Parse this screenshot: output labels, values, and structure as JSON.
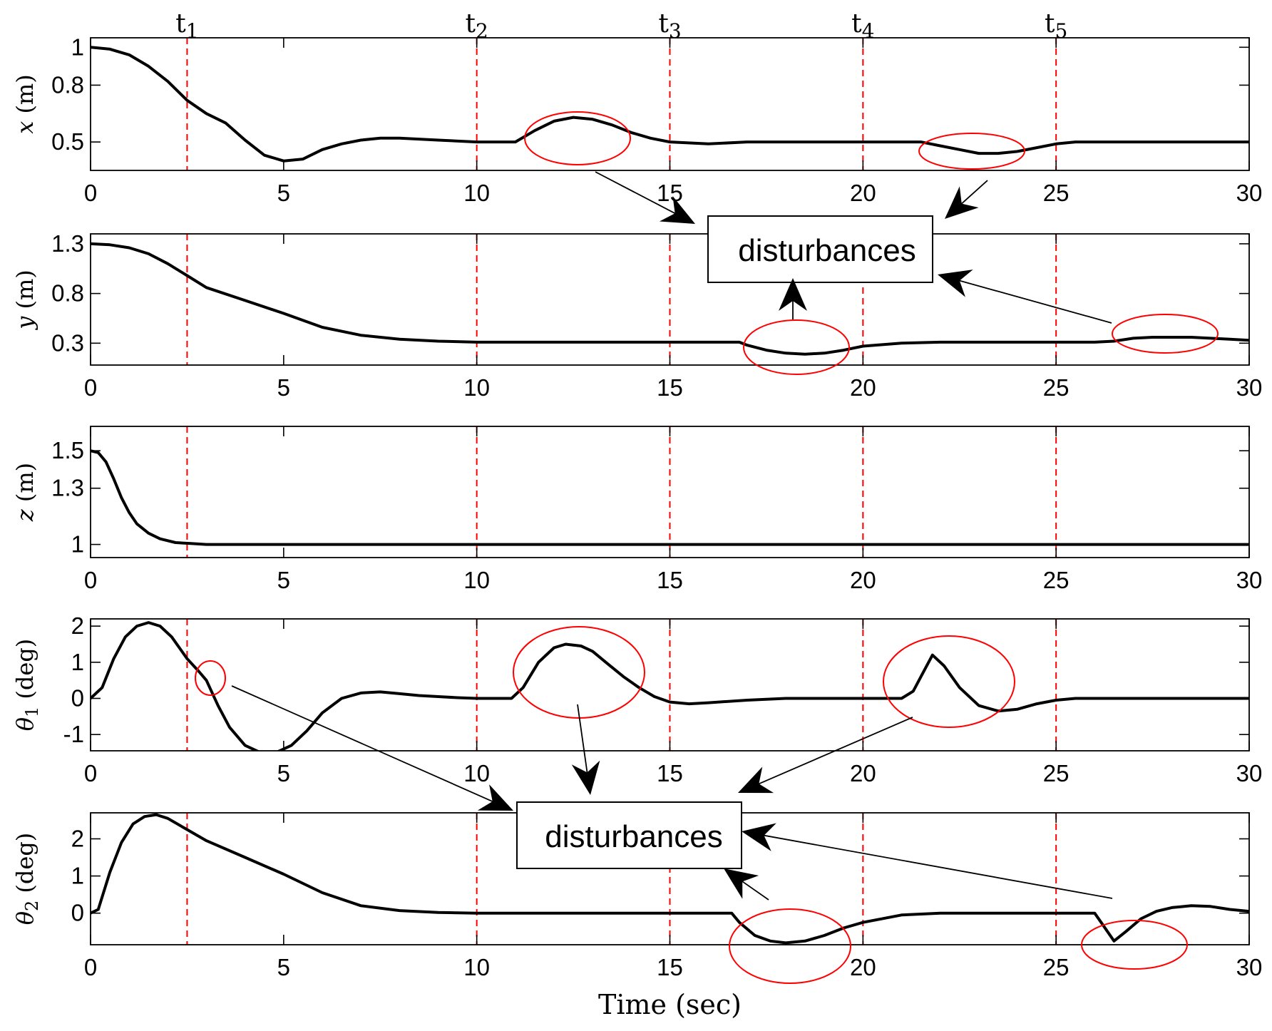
{
  "chart_data": {
    "type": "line",
    "xlabel": "Time (sec)",
    "xlim": [
      0,
      30
    ],
    "xticks": [
      0,
      5,
      10,
      15,
      20,
      25,
      30
    ],
    "vlines": [
      {
        "label_base": "t",
        "label_sub": "1",
        "x": 2.5
      },
      {
        "label_base": "t",
        "label_sub": "2",
        "x": 10
      },
      {
        "label_base": "t",
        "label_sub": "3",
        "x": 15
      },
      {
        "label_base": "t",
        "label_sub": "4",
        "x": 20
      },
      {
        "label_base": "t",
        "label_sub": "5",
        "x": 25
      }
    ],
    "vline_color": "#ff0000",
    "line_color": "#000000",
    "annotation_color": "#ff0000",
    "annotation_text": "disturbances",
    "panels": [
      {
        "ylabel_var": "x",
        "ylabel_sub": "",
        "ylabel_unit": "(m)",
        "ylim": [
          0.35,
          1.05
        ],
        "yticks": [
          {
            "v": 1,
            "t": "1"
          },
          {
            "v": 0.8,
            "t": "0.8"
          },
          {
            "v": 0.5,
            "t": "0.5"
          }
        ],
        "x": [
          0,
          0.5,
          1,
          1.5,
          2,
          2.5,
          3,
          3.5,
          4,
          4.5,
          5,
          5.5,
          6,
          6.5,
          7,
          7.5,
          8,
          9,
          10,
          10.5,
          11,
          11.5,
          12,
          12.5,
          13,
          13.5,
          14,
          14.5,
          15,
          16,
          17,
          18,
          19,
          20,
          21,
          21.5,
          22,
          22.5,
          23,
          23.5,
          24,
          24.5,
          25,
          25.5,
          26,
          27,
          28,
          29,
          30
        ],
        "y": [
          1.0,
          0.99,
          0.96,
          0.9,
          0.82,
          0.72,
          0.65,
          0.6,
          0.51,
          0.43,
          0.4,
          0.41,
          0.46,
          0.49,
          0.51,
          0.52,
          0.52,
          0.51,
          0.5,
          0.5,
          0.5,
          0.56,
          0.61,
          0.63,
          0.62,
          0.59,
          0.55,
          0.52,
          0.5,
          0.49,
          0.5,
          0.5,
          0.5,
          0.5,
          0.5,
          0.5,
          0.48,
          0.46,
          0.44,
          0.44,
          0.45,
          0.47,
          0.49,
          0.5,
          0.5,
          0.5,
          0.5,
          0.5,
          0.5
        ]
      },
      {
        "ylabel_var": "y",
        "ylabel_sub": "",
        "ylabel_unit": "(m)",
        "ylim": [
          0.08,
          1.4
        ],
        "yticks": [
          {
            "v": 1.3,
            "t": "1.3"
          },
          {
            "v": 0.8,
            "t": "0.8"
          },
          {
            "v": 0.3,
            "t": "0.3"
          }
        ],
        "x": [
          0,
          0.5,
          1,
          1.5,
          2,
          2.5,
          3,
          4,
          5,
          6,
          7,
          8,
          9,
          10,
          12,
          14,
          16,
          16.8,
          17,
          17.5,
          18,
          18.5,
          19,
          19.5,
          20,
          21,
          22,
          23,
          24,
          25,
          26,
          26.5,
          27,
          27.5,
          28,
          28.5,
          29,
          29.5,
          30
        ],
        "y": [
          1.3,
          1.29,
          1.26,
          1.2,
          1.1,
          0.98,
          0.86,
          0.73,
          0.6,
          0.46,
          0.38,
          0.34,
          0.32,
          0.31,
          0.31,
          0.31,
          0.31,
          0.31,
          0.28,
          0.23,
          0.2,
          0.19,
          0.2,
          0.23,
          0.27,
          0.3,
          0.31,
          0.31,
          0.31,
          0.31,
          0.31,
          0.32,
          0.35,
          0.36,
          0.36,
          0.36,
          0.35,
          0.34,
          0.33
        ]
      },
      {
        "ylabel_var": "z",
        "ylabel_sub": "",
        "ylabel_unit": "(m)",
        "ylim": [
          0.93,
          1.63
        ],
        "yticks": [
          {
            "v": 1.5,
            "t": "1.5"
          },
          {
            "v": 1.3,
            "t": "1.3"
          },
          {
            "v": 1,
            "t": "1"
          }
        ],
        "x": [
          0,
          0.2,
          0.4,
          0.6,
          0.8,
          1.0,
          1.2,
          1.5,
          1.8,
          2.2,
          2.6,
          3,
          5,
          10,
          15,
          20,
          25,
          30
        ],
        "y": [
          1.5,
          1.49,
          1.44,
          1.35,
          1.25,
          1.17,
          1.11,
          1.06,
          1.03,
          1.01,
          1.005,
          1.0,
          1.0,
          1.0,
          1.0,
          1.0,
          1.0,
          1.0
        ]
      },
      {
        "ylabel_var": "θ",
        "ylabel_sub": "1",
        "ylabel_unit": "(deg)",
        "ylim": [
          -1.45,
          2.2
        ],
        "yticks": [
          {
            "v": 2,
            "t": "2"
          },
          {
            "v": 1,
            "t": "1"
          },
          {
            "v": 0,
            "t": "0"
          },
          {
            "v": -1,
            "t": "-1"
          }
        ],
        "x": [
          0,
          0.3,
          0.6,
          0.9,
          1.2,
          1.5,
          1.8,
          2.1,
          2.5,
          2.8,
          3.0,
          3.3,
          3.6,
          4.0,
          4.4,
          4.8,
          5.2,
          5.6,
          6.0,
          6.5,
          7.0,
          7.5,
          8.0,
          8.5,
          9.0,
          9.5,
          10,
          10.5,
          10.9,
          11.2,
          11.6,
          12.0,
          12.3,
          12.7,
          13.0,
          13.4,
          13.8,
          14.2,
          14.6,
          15.0,
          15.5,
          16,
          17,
          18,
          19,
          20,
          21,
          21.3,
          21.5,
          21.8,
          22.1,
          22.5,
          23,
          23.5,
          24,
          24.5,
          25,
          25.5,
          26,
          27,
          28,
          29,
          30
        ],
        "y": [
          0,
          0.3,
          1.1,
          1.7,
          2.0,
          2.1,
          2.0,
          1.7,
          1.1,
          0.75,
          0.5,
          -0.2,
          -0.8,
          -1.3,
          -1.5,
          -1.5,
          -1.3,
          -0.9,
          -0.4,
          0.0,
          0.15,
          0.18,
          0.13,
          0.08,
          0.05,
          0.02,
          0.0,
          0.0,
          0.0,
          0.3,
          1.0,
          1.4,
          1.5,
          1.45,
          1.3,
          0.95,
          0.6,
          0.3,
          0.05,
          -0.1,
          -0.15,
          -0.12,
          -0.05,
          0.0,
          0.0,
          0.0,
          0.0,
          0.2,
          0.6,
          1.2,
          0.9,
          0.3,
          -0.2,
          -0.35,
          -0.3,
          -0.15,
          -0.05,
          0.0,
          0.0,
          0.0,
          0.0,
          0.0,
          0.0
        ]
      },
      {
        "ylabel_var": "θ",
        "ylabel_sub": "2",
        "ylabel_unit": "(deg)",
        "ylim": [
          -0.85,
          2.7
        ],
        "yticks": [
          {
            "v": 2,
            "t": "2"
          },
          {
            "v": 1,
            "t": "1"
          },
          {
            "v": 0,
            "t": "0"
          }
        ],
        "x": [
          0,
          0.2,
          0.5,
          0.8,
          1.1,
          1.4,
          1.7,
          2.0,
          2.5,
          3,
          4,
          5,
          6,
          7,
          8,
          9,
          10,
          12,
          14,
          16,
          16.6,
          16.8,
          17.2,
          17.6,
          18,
          18.5,
          19,
          19.5,
          20,
          21,
          22,
          24,
          25.5,
          26.0,
          26.2,
          26.5,
          26.8,
          27.2,
          27.6,
          28,
          28.5,
          29,
          29.5,
          30
        ],
        "y": [
          0,
          0.1,
          1.1,
          1.9,
          2.4,
          2.6,
          2.65,
          2.55,
          2.25,
          1.95,
          1.5,
          1.05,
          0.55,
          0.2,
          0.07,
          0.02,
          0.0,
          0.0,
          0.0,
          0.0,
          0.0,
          -0.25,
          -0.6,
          -0.75,
          -0.8,
          -0.75,
          -0.6,
          -0.4,
          -0.25,
          -0.05,
          0.0,
          0.0,
          0.0,
          0.0,
          -0.3,
          -0.75,
          -0.5,
          -0.15,
          0.05,
          0.15,
          0.2,
          0.18,
          0.1,
          0.05
        ]
      }
    ]
  }
}
